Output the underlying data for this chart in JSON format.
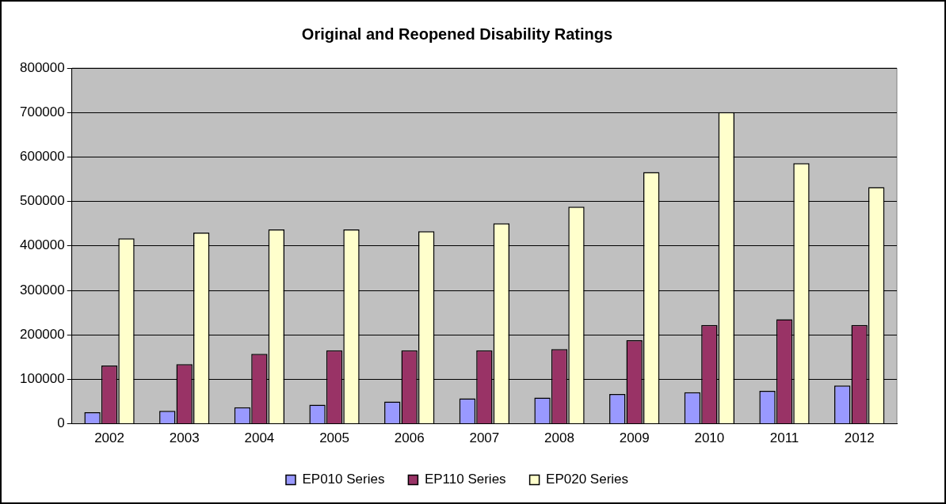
{
  "chart_data": {
    "type": "bar",
    "title": "Original and Reopened Disability Ratings",
    "categories": [
      "2002",
      "2003",
      "2004",
      "2005",
      "2006",
      "2007",
      "2008",
      "2009",
      "2010",
      "2011",
      "2012"
    ],
    "series": [
      {
        "name": "EP010 Series",
        "color": "#9999ff",
        "values": [
          26000,
          29000,
          37000,
          43000,
          50000,
          57000,
          59000,
          67000,
          71000,
          74000,
          86000
        ]
      },
      {
        "name": "EP110 Series",
        "color": "#993366",
        "values": [
          131000,
          134000,
          157000,
          165000,
          165000,
          165000,
          168000,
          188000,
          222000,
          235000,
          222000
        ]
      },
      {
        "name": "EP020 Series",
        "color": "#ffffcc",
        "values": [
          417000,
          430000,
          437000,
          437000,
          433000,
          451000,
          488000,
          566000,
          701000,
          586000,
          532000
        ]
      }
    ],
    "ylim": [
      0,
      800000
    ],
    "yticks": [
      0,
      100000,
      200000,
      300000,
      400000,
      500000,
      600000,
      700000,
      800000
    ],
    "grid": "y",
    "legend": "bottom"
  }
}
